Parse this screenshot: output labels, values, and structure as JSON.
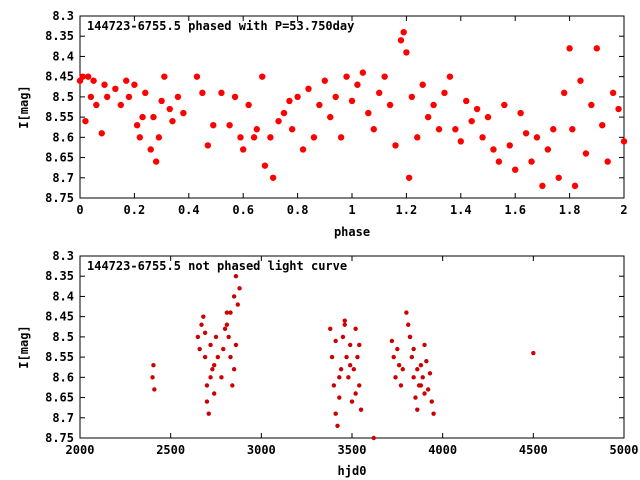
{
  "chart_data": [
    {
      "type": "scatter",
      "title": "144723-6755.5 phased with P=53.750day",
      "xlabel": "phase",
      "ylabel": "I[mag]",
      "xlim": [
        0,
        2
      ],
      "ylim": [
        8.75,
        8.3
      ],
      "y_inverted": true,
      "xticks": [
        "0",
        "0.2",
        "0.4",
        "0.6",
        "0.8",
        "1",
        "1.2",
        "1.4",
        "1.6",
        "1.8",
        "2"
      ],
      "yticks": [
        "8.3",
        "8.35",
        "8.4",
        "8.45",
        "8.5",
        "8.55",
        "8.6",
        "8.65",
        "8.7",
        "8.75"
      ],
      "marker_color": "#ff0000",
      "series": [
        {
          "x": [
            0.0,
            0.01,
            0.02,
            0.03,
            0.04,
            0.05,
            0.06,
            0.08,
            0.09,
            0.1,
            0.13,
            0.15,
            0.17,
            0.18,
            0.2,
            0.21,
            0.22,
            0.23,
            0.24,
            0.26,
            0.27,
            0.28,
            0.29,
            0.3,
            0.31,
            0.33,
            0.34,
            0.36,
            0.38,
            0.43,
            0.45,
            0.47,
            0.49,
            0.52,
            0.55,
            0.57,
            0.59,
            0.6,
            0.62,
            0.64,
            0.65,
            0.67,
            0.68,
            0.7,
            0.71,
            0.73,
            0.75,
            0.77,
            0.78,
            0.8,
            0.82,
            0.84,
            0.86,
            0.88,
            0.9,
            0.92,
            0.94,
            0.96,
            0.98,
            1.0,
            1.02,
            1.04,
            1.06,
            1.08,
            1.1,
            1.12,
            1.14,
            1.16,
            1.18,
            1.19,
            1.2,
            1.21,
            1.22,
            1.24,
            1.26,
            1.28,
            1.3,
            1.32,
            1.34,
            1.36,
            1.38,
            1.4,
            1.42,
            1.44,
            1.46,
            1.48,
            1.5,
            1.52,
            1.54,
            1.56,
            1.58,
            1.6,
            1.62,
            1.64,
            1.66,
            1.68,
            1.7,
            1.72,
            1.74,
            1.76,
            1.78,
            1.8,
            1.81,
            1.82,
            1.84,
            1.86,
            1.88,
            1.9,
            1.92,
            1.94,
            1.96,
            1.98,
            2.0
          ],
          "y": [
            8.46,
            8.45,
            8.56,
            8.45,
            8.5,
            8.46,
            8.52,
            8.59,
            8.47,
            8.5,
            8.48,
            8.52,
            8.46,
            8.5,
            8.47,
            8.57,
            8.6,
            8.55,
            8.49,
            8.63,
            8.55,
            8.66,
            8.6,
            8.51,
            8.45,
            8.53,
            8.56,
            8.5,
            8.54,
            8.45,
            8.49,
            8.62,
            8.57,
            8.49,
            8.57,
            8.5,
            8.6,
            8.63,
            8.52,
            8.6,
            8.58,
            8.45,
            8.67,
            8.6,
            8.7,
            8.56,
            8.54,
            8.51,
            8.58,
            8.5,
            8.63,
            8.48,
            8.6,
            8.52,
            8.46,
            8.55,
            8.5,
            8.6,
            8.45,
            8.51,
            8.47,
            8.44,
            8.54,
            8.58,
            8.49,
            8.45,
            8.52,
            8.62,
            8.36,
            8.34,
            8.39,
            8.7,
            8.5,
            8.6,
            8.47,
            8.55,
            8.52,
            8.58,
            8.49,
            8.45,
            8.58,
            8.61,
            8.51,
            8.56,
            8.53,
            8.6,
            8.55,
            8.63,
            8.66,
            8.52,
            8.62,
            8.68,
            8.54,
            8.59,
            8.66,
            8.6,
            8.72,
            8.63,
            8.58,
            8.7,
            8.49,
            8.38,
            8.58,
            8.72,
            8.46,
            8.64,
            8.52,
            8.38,
            8.57,
            8.66,
            8.49,
            8.53,
            8.61
          ]
        }
      ]
    },
    {
      "type": "scatter",
      "title": "144723-6755.5 not phased light curve",
      "xlabel": "hjd0",
      "ylabel": "I[mag]",
      "xlim": [
        2000,
        5000
      ],
      "ylim": [
        8.75,
        8.3
      ],
      "y_inverted": true,
      "xticks": [
        "2000",
        "2500",
        "3000",
        "3500",
        "4000",
        "4500",
        "5000"
      ],
      "yticks": [
        "8.3",
        "8.35",
        "8.4",
        "8.45",
        "8.5",
        "8.55",
        "8.6",
        "8.65",
        "8.7",
        "8.75"
      ],
      "marker_color": "#cc0000",
      "series": [
        {
          "x": [
            2400,
            2410,
            2405,
            2650,
            2660,
            2670,
            2680,
            2690,
            2700,
            2710,
            2720,
            2730,
            2740,
            2750,
            2760,
            2780,
            2790,
            2800,
            2810,
            2820,
            2830,
            2840,
            2850,
            2860,
            2870,
            2880,
            2690,
            2700,
            2720,
            2740,
            2810,
            2830,
            2850,
            2860,
            3380,
            3390,
            3400,
            3410,
            3420,
            3430,
            3440,
            3450,
            3460,
            3470,
            3480,
            3490,
            3500,
            3510,
            3520,
            3530,
            3540,
            3550,
            3410,
            3430,
            3460,
            3490,
            3520,
            3540,
            3620,
            3720,
            3730,
            3740,
            3750,
            3760,
            3770,
            3780,
            3800,
            3810,
            3820,
            3830,
            3840,
            3850,
            3860,
            3870,
            3880,
            3890,
            3900,
            3910,
            3920,
            3930,
            3940,
            3950,
            3820,
            3840,
            3860,
            3880,
            3900,
            4500
          ],
          "y": [
            8.6,
            8.63,
            8.57,
            8.5,
            8.53,
            8.47,
            8.45,
            8.55,
            8.62,
            8.69,
            8.52,
            8.58,
            8.64,
            8.5,
            8.55,
            8.6,
            8.53,
            8.48,
            8.44,
            8.5,
            8.55,
            8.62,
            8.4,
            8.35,
            8.42,
            8.38,
            8.49,
            8.66,
            8.6,
            8.57,
            8.47,
            8.44,
            8.58,
            8.52,
            8.48,
            8.55,
            8.62,
            8.69,
            8.72,
            8.65,
            8.58,
            8.5,
            8.47,
            8.55,
            8.6,
            8.52,
            8.66,
            8.58,
            8.48,
            8.55,
            8.62,
            8.68,
            8.51,
            8.6,
            8.46,
            8.57,
            8.64,
            8.52,
            8.75,
            8.51,
            8.55,
            8.6,
            8.53,
            8.57,
            8.62,
            8.58,
            8.44,
            8.47,
            8.5,
            8.55,
            8.6,
            8.65,
            8.68,
            8.62,
            8.57,
            8.6,
            8.52,
            8.56,
            8.63,
            8.59,
            8.66,
            8.69,
            8.5,
            8.53,
            8.58,
            8.62,
            8.64,
            8.54
          ]
        }
      ]
    }
  ]
}
